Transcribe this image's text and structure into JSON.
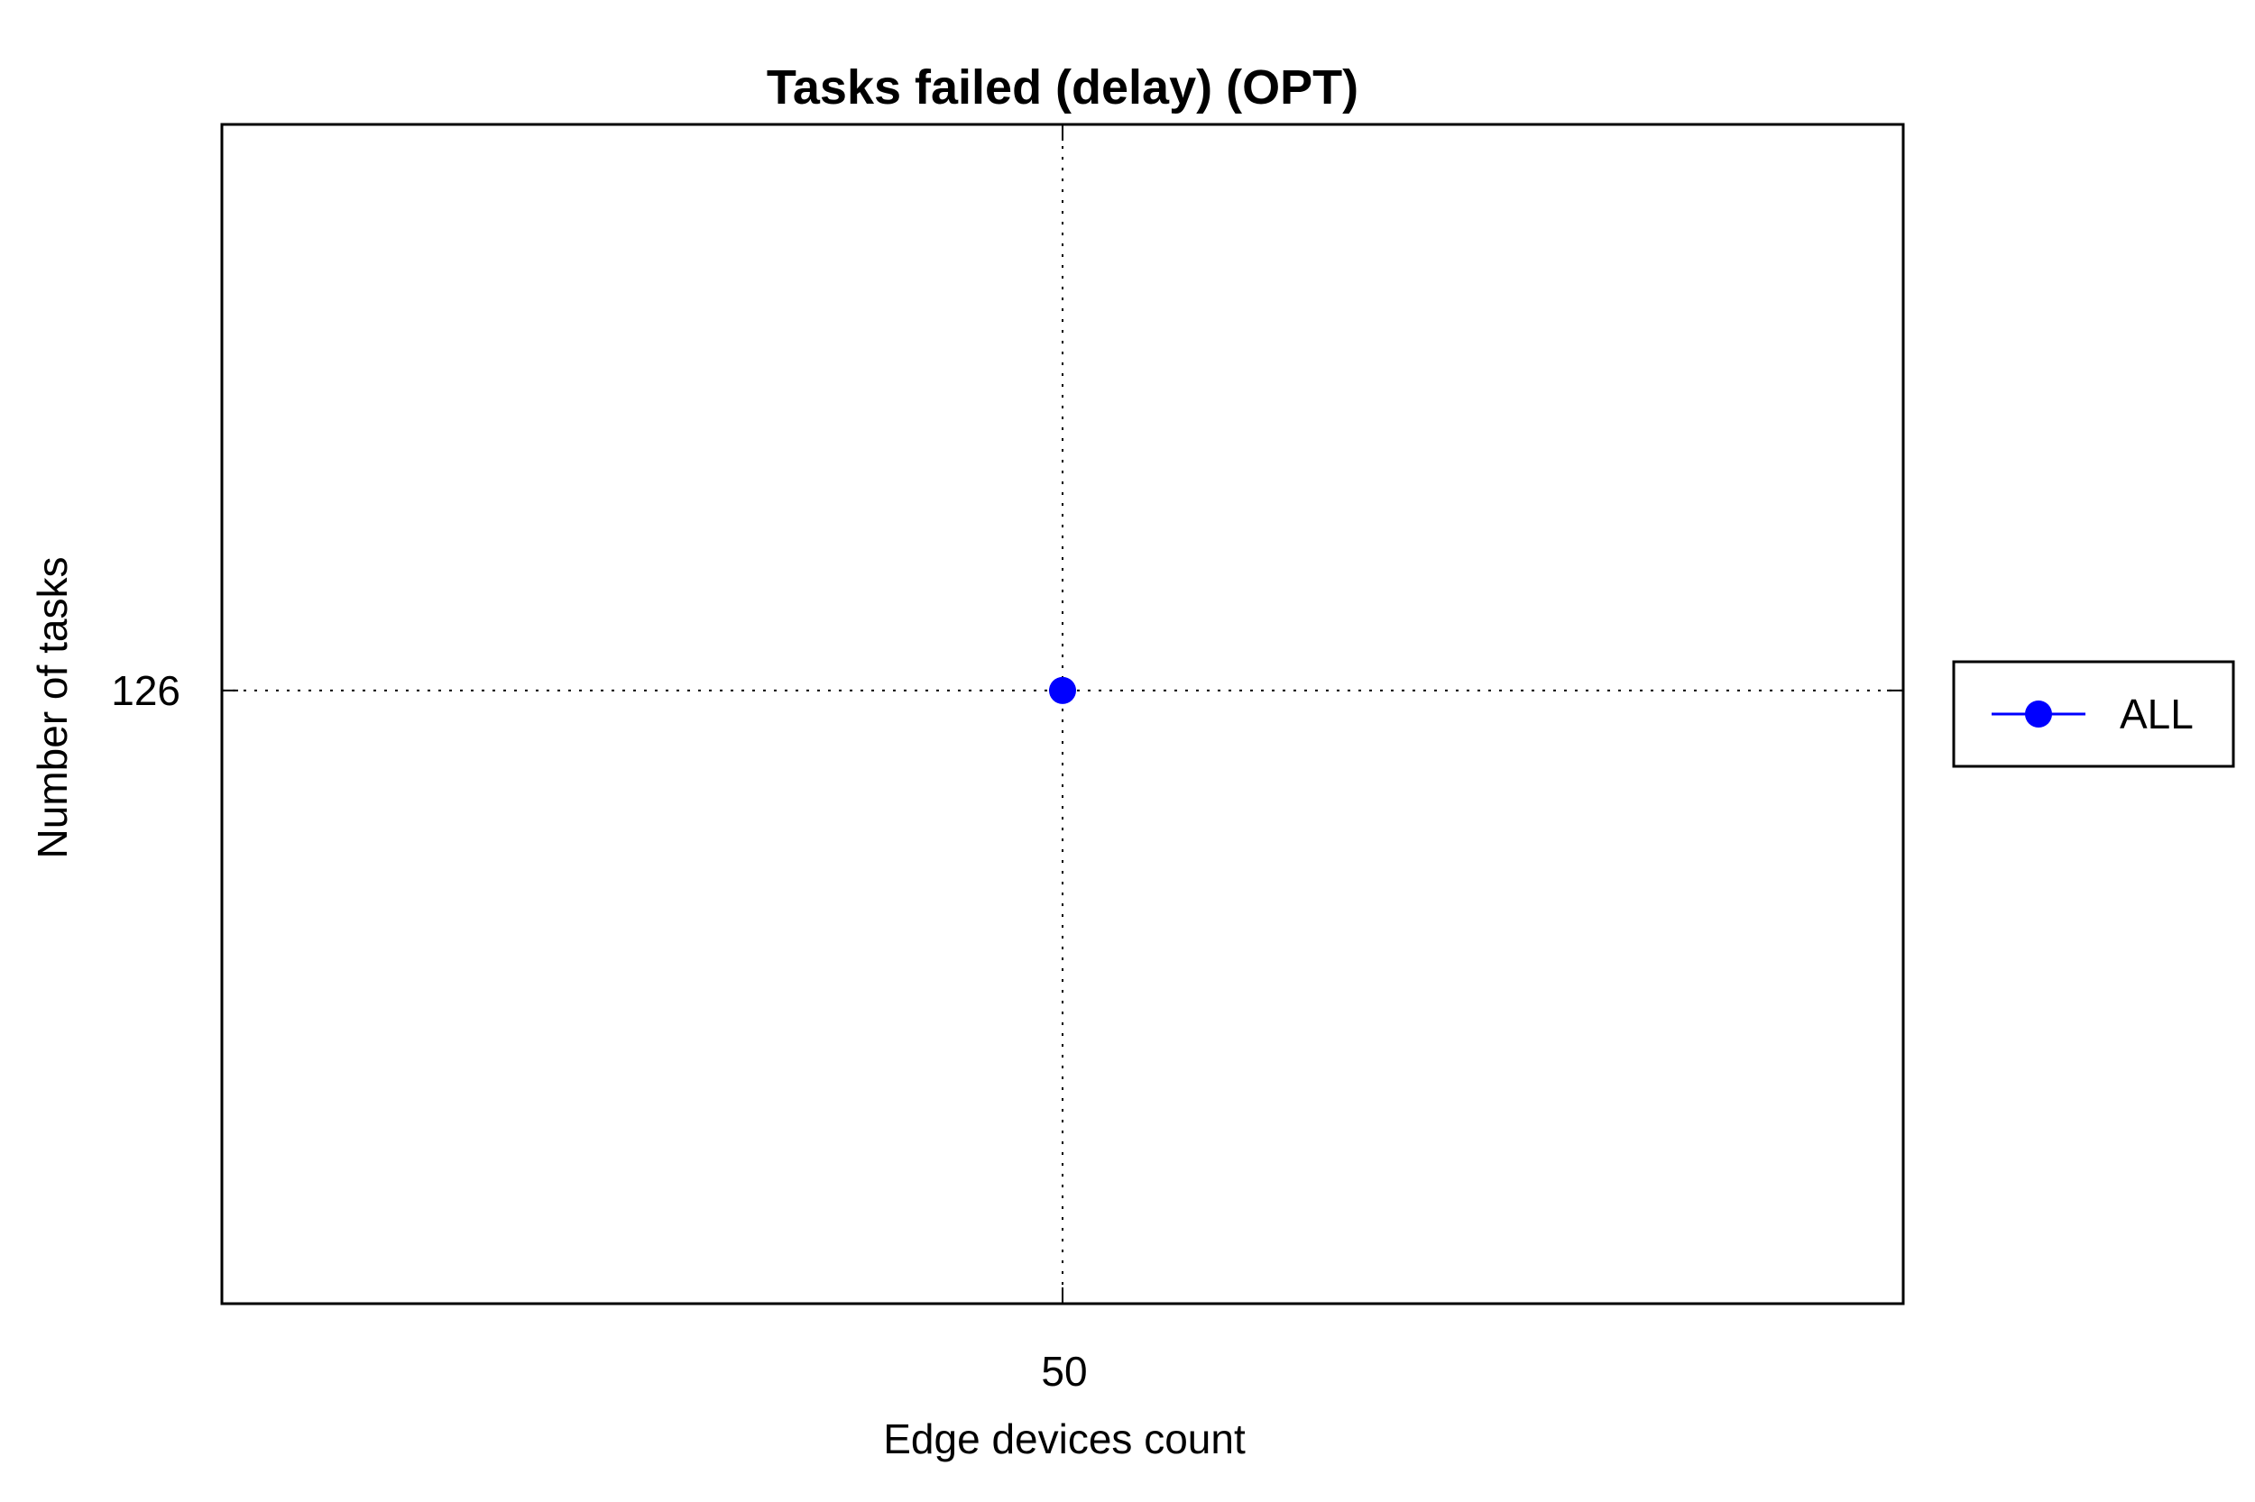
{
  "chart_data": {
    "type": "line",
    "title": "Tasks failed (delay) (OPT)",
    "xlabel": "Edge devices count",
    "ylabel": "Number of tasks",
    "x_ticks": [
      "50"
    ],
    "y_ticks": [
      "126"
    ],
    "xlim": [
      40,
      60
    ],
    "ylim": [
      100,
      150
    ],
    "grid": true,
    "legend_position": "right",
    "series": [
      {
        "name": "ALL",
        "color": "#0000ff",
        "marker": "circle",
        "x": [
          50
        ],
        "y": [
          126
        ]
      }
    ]
  }
}
